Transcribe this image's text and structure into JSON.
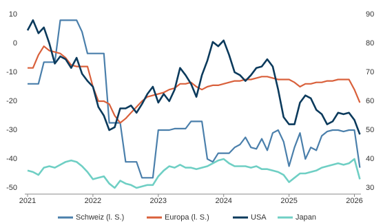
{
  "chart_data": {
    "type": "line",
    "x": [
      2021,
      2021.083,
      2021.167,
      2021.25,
      2021.333,
      2021.417,
      2021.5,
      2021.583,
      2021.667,
      2021.75,
      2021.833,
      2021.917,
      2022,
      2022.083,
      2022.167,
      2022.25,
      2022.333,
      2022.417,
      2022.5,
      2022.583,
      2022.667,
      2022.75,
      2022.833,
      2022.917,
      2023,
      2023.083,
      2023.167,
      2023.25,
      2023.333,
      2023.417,
      2023.5,
      2023.583,
      2023.667,
      2023.75,
      2023.833,
      2023.917,
      2024,
      2024.083,
      2024.167,
      2024.25,
      2024.333,
      2024.417,
      2024.5,
      2024.583,
      2024.667,
      2024.75,
      2024.833,
      2024.917,
      2025,
      2025.083,
      2025.167,
      2025.25,
      2025.333,
      2025.417,
      2025.5,
      2025.583,
      2025.667,
      2025.75,
      2025.833,
      2025.917,
      2026,
      2026.083
    ],
    "xlim": [
      2021,
      2026.1
    ],
    "xticks": [
      2021,
      2022,
      2023,
      2024,
      2025,
      2026
    ],
    "ylim": [
      -50,
      10
    ],
    "yticks": [
      10,
      0,
      -10,
      -20,
      -30,
      -40,
      -50
    ],
    "y2lim": [
      30,
      90
    ],
    "y2ticks": [
      90,
      80,
      70,
      60,
      50,
      40,
      30
    ],
    "grid": false,
    "legend": "bottom",
    "series": [
      {
        "name": "Schweiz (l. S.)",
        "color": "#4a7fab",
        "values": [
          -14,
          -14,
          -14,
          -6.5,
          -6.5,
          -6.5,
          8,
          8,
          8,
          8,
          4,
          -3.5,
          -3.5,
          -3.5,
          -3.5,
          -27.5,
          -27.5,
          -27.5,
          -41,
          -41,
          -41,
          -46.5,
          -46.5,
          -46.5,
          -30,
          -30,
          -30,
          -29.5,
          -29.5,
          -29.5,
          -27,
          -27,
          -27,
          -40,
          -41,
          -38,
          -38,
          -38,
          -36,
          -35,
          -32.5,
          -36,
          -36.5,
          -33,
          -37,
          -31,
          -30,
          -34,
          -42.5,
          -36,
          -31,
          -40,
          -36,
          -37,
          -32,
          -30.5,
          -30,
          -30,
          -30.5,
          -30,
          -30,
          -43
        ]
      },
      {
        "name": "Europa (l. S.)",
        "color": "#d9603b",
        "values": [
          -8.5,
          -8.5,
          -4,
          -1,
          -2.5,
          -3,
          -3.5,
          -5,
          -7.5,
          -8,
          -8,
          -8,
          -15,
          -20,
          -20,
          -21,
          -25,
          -27.5,
          -26,
          -24,
          -22,
          -20,
          -18.5,
          -18,
          -17.5,
          -17,
          -16,
          -15.5,
          -14,
          -14,
          -13.5,
          -15,
          -16,
          -15,
          -14.5,
          -14.5,
          -14,
          -13.5,
          -13,
          -13,
          -12.5,
          -12.5,
          -12,
          -11.5,
          -11.5,
          -12,
          -12.5,
          -12.5,
          -12.5,
          -13.5,
          -15,
          -14,
          -14,
          -13.5,
          -13.5,
          -13,
          -13,
          -12.5,
          -12.5,
          -12.5,
          -16,
          -20.5
        ]
      },
      {
        "name": "USA",
        "color": "#0b3a5c",
        "axis": "y2",
        "values": [
          84.5,
          88,
          83.5,
          85.5,
          80,
          73,
          75.5,
          74.5,
          71.5,
          75,
          69.5,
          67,
          65,
          58,
          55,
          50,
          51,
          57.5,
          57.5,
          58.5,
          56,
          59,
          62.5,
          65,
          59.5,
          62.5,
          60,
          64,
          71.5,
          69,
          66,
          61.5,
          69,
          74,
          80.5,
          79,
          81,
          76,
          70,
          69,
          67,
          69,
          71.5,
          72,
          74.5,
          72,
          64,
          54.5,
          52,
          52,
          59.5,
          62,
          61,
          57,
          55.5,
          52,
          53,
          56,
          55.5,
          56,
          53.5,
          48.5
        ]
      },
      {
        "name": "Japan",
        "color": "#6fcfc4",
        "axis": "y2",
        "values": [
          36,
          35.5,
          34.5,
          37,
          37.5,
          37,
          38,
          39,
          39.5,
          39,
          37.5,
          35.5,
          33,
          33.5,
          34,
          31.5,
          30,
          32.5,
          31.5,
          31,
          30,
          30.5,
          31,
          31,
          34,
          36,
          37.5,
          37,
          38,
          37,
          37,
          36.5,
          37,
          37.5,
          38.5,
          39.5,
          40,
          38.5,
          37.5,
          37.5,
          37.5,
          37,
          37.5,
          36.5,
          36.5,
          36,
          35.5,
          34.5,
          32,
          33.5,
          35,
          35,
          35.5,
          36,
          37,
          37.5,
          38,
          38.5,
          38,
          38.5,
          40,
          33
        ]
      }
    ]
  }
}
